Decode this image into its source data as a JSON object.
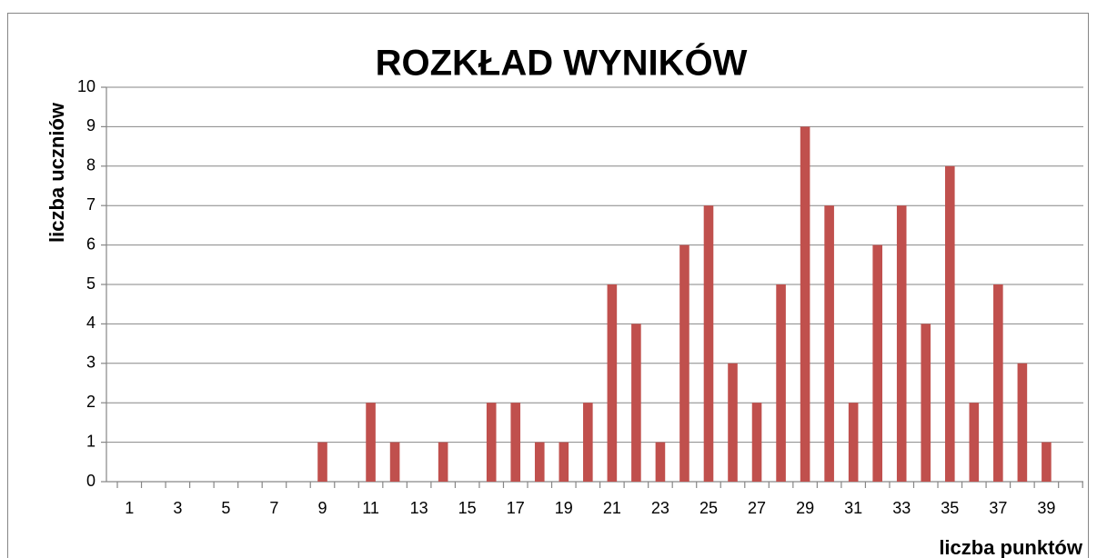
{
  "chart_data": {
    "type": "bar",
    "title": "ROZKŁAD WYNIKÓW",
    "x_label": "liczba punktów",
    "y_label": "liczba uczniów",
    "categories": [
      1,
      null,
      3,
      null,
      5,
      null,
      7,
      null,
      9,
      null,
      11,
      null,
      13,
      null,
      15,
      null,
      17,
      null,
      19,
      null,
      21,
      null,
      23,
      null,
      25,
      null,
      27,
      null,
      29,
      null,
      31,
      null,
      33,
      null,
      35,
      null,
      37,
      null,
      39
    ],
    "values": [
      0,
      0,
      0,
      0,
      0,
      0,
      0,
      0,
      1,
      0,
      2,
      1,
      0,
      1,
      0,
      2,
      2,
      1,
      1,
      2,
      5,
      4,
      1,
      6,
      7,
      3,
      2,
      5,
      9,
      7,
      2,
      6,
      7,
      4,
      8,
      2,
      5,
      3,
      1
    ],
    "color": "#c0504d",
    "ylim": [
      0,
      10
    ],
    "yticks": [
      0,
      1,
      2,
      3,
      4,
      5,
      6,
      7,
      8,
      9,
      10
    ],
    "grid": true
  }
}
